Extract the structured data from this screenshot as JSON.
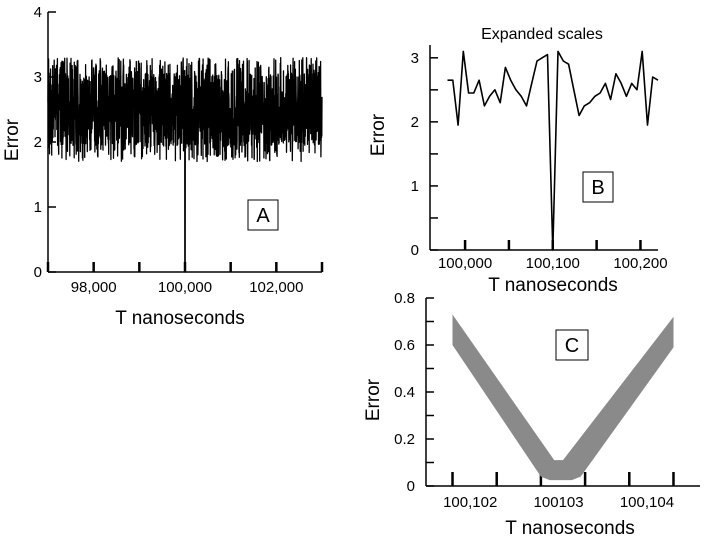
{
  "chart_data": [
    {
      "id": "A",
      "type": "line",
      "panel_label": "A",
      "title": "",
      "xlabel": "T  nanoseconds",
      "ylabel": "Error",
      "xlim": [
        97000,
        103000
      ],
      "ylim": [
        0,
        4
      ],
      "x_ticks": [
        97000,
        98000,
        99000,
        100000,
        101000,
        102000,
        103000
      ],
      "x_tick_labels": [
        {
          "x": 98000,
          "label": "98,000"
        },
        {
          "x": 100000,
          "label": "100,000"
        },
        {
          "x": 102000,
          "label": "102,000"
        }
      ],
      "y_ticks": [
        0,
        1,
        2,
        3,
        4
      ],
      "y_tick_labels": [
        "0",
        "1",
        "2",
        "3",
        "4"
      ],
      "series": [
        {
          "style": "dense noisy trace fluctuating between about 1.7 and 3.3, with a single sharp dip to 0 at 100,000",
          "band": [
            1.7,
            3.3
          ],
          "mean": 2.5,
          "dip": {
            "x": 100000,
            "y": 0
          }
        }
      ]
    },
    {
      "id": "B",
      "type": "line",
      "panel_label": "B",
      "title": "Expanded scales",
      "xlabel": "T  nanoseconds",
      "ylabel": "Error",
      "xlim": [
        99960,
        100220
      ],
      "ylim": [
        0,
        3.2
      ],
      "x_ticks": [
        100000,
        100050,
        100100,
        100150,
        100200
      ],
      "x_tick_labels": [
        {
          "x": 100000,
          "label": "100,000"
        },
        {
          "x": 100100,
          "label": "100,100"
        },
        {
          "x": 100200,
          "label": "100,200"
        }
      ],
      "y_ticks": [
        0,
        0.5,
        1,
        1.5,
        2,
        2.5,
        3
      ],
      "y_tick_labels": [
        {
          "y": 0,
          "label": "0"
        },
        {
          "y": 1,
          "label": "1"
        },
        {
          "y": 2,
          "label": "2"
        },
        {
          "y": 3,
          "label": "3"
        }
      ],
      "series": [
        {
          "x": [
            99980,
            99986,
            99992,
            99998,
            100004,
            100010,
            100016,
            100022,
            100028,
            100034,
            100040,
            100046,
            100052,
            100058,
            100064,
            100070,
            100076,
            100082,
            100088,
            100094,
            100100,
            100106,
            100112,
            100118,
            100124,
            100130,
            100136,
            100142,
            100148,
            100154,
            100160,
            100166,
            100172,
            100178,
            100184,
            100190,
            100196,
            100202,
            100208,
            100214,
            100220
          ],
          "y": [
            2.65,
            2.65,
            1.95,
            3.1,
            2.45,
            2.45,
            2.65,
            2.25,
            2.4,
            2.5,
            2.3,
            2.85,
            2.65,
            2.5,
            2.4,
            2.25,
            2.6,
            2.95,
            3.0,
            3.05,
            0.0,
            3.1,
            2.95,
            2.9,
            2.5,
            2.1,
            2.25,
            2.3,
            2.4,
            2.45,
            2.6,
            2.35,
            2.75,
            2.6,
            2.4,
            2.6,
            2.5,
            3.1,
            1.95,
            2.7,
            2.65
          ]
        }
      ]
    },
    {
      "id": "C",
      "type": "area",
      "panel_label": "C",
      "title": "",
      "xlabel": "T  nanoseconds",
      "ylabel": "Error",
      "xlim": [
        100101.5,
        100104.6
      ],
      "ylim": [
        0,
        0.8
      ],
      "x_ticks": [
        100101.8,
        100102.3,
        100102.8,
        100103.3,
        100103.8,
        100104.3
      ],
      "x_tick_labels": [
        {
          "x": 100102,
          "label": "100,102"
        },
        {
          "x": 100103,
          "label": "100103"
        },
        {
          "x": 100104,
          "label": "100,104"
        }
      ],
      "y_ticks": [
        0,
        0.1,
        0.2,
        0.3,
        0.4,
        0.5,
        0.6,
        0.7,
        0.8
      ],
      "y_tick_labels": [
        {
          "y": 0,
          "label": "0"
        },
        {
          "y": 0.2,
          "label": "0.2"
        },
        {
          "y": 0.4,
          "label": "0.4"
        },
        {
          "y": 0.6,
          "label": "0.6"
        },
        {
          "y": 0.8,
          "label": "0.8"
        }
      ],
      "series": [
        {
          "style": "grey V-shaped band",
          "color": "#8a8a8a",
          "upper": [
            [
              100101.8,
              0.73
            ],
            [
              100102.95,
              0.11
            ],
            [
              100103.05,
              0.11
            ],
            [
              100104.3,
              0.72
            ]
          ],
          "lower": [
            [
              100101.8,
              0.6
            ],
            [
              100102.8,
              0.04
            ],
            [
              100102.9,
              0.025
            ],
            [
              100103.15,
              0.025
            ],
            [
              100103.25,
              0.04
            ],
            [
              100104.3,
              0.59
            ]
          ]
        }
      ]
    }
  ]
}
